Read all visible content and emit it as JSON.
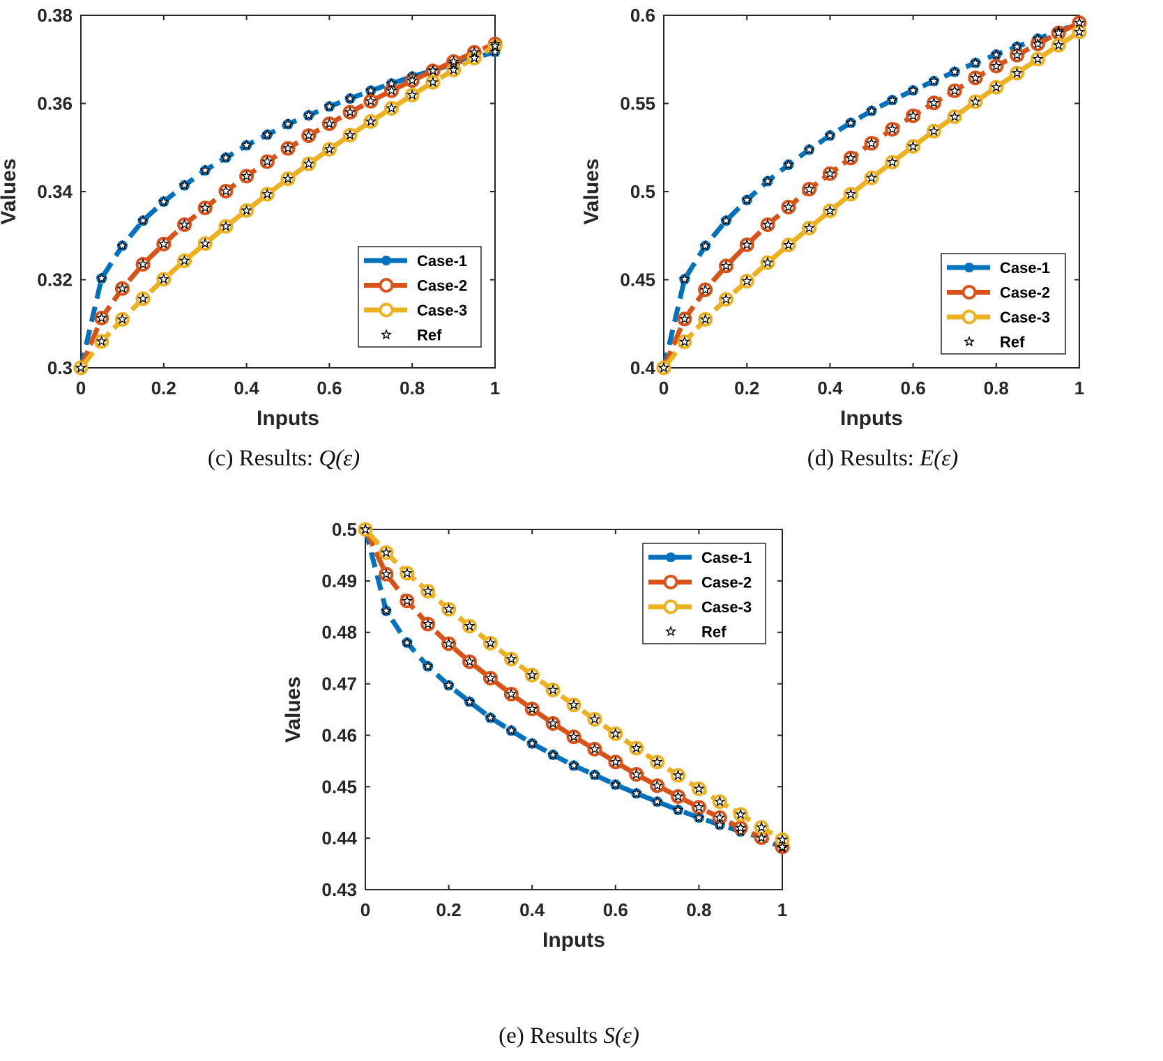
{
  "chart_data": [
    {
      "type": "line",
      "caption": {
        "prefix": "(c) Results: ",
        "math": "Q(ε)"
      },
      "xlabel": "Inputs",
      "ylabel": "Values",
      "xlim": [
        0,
        1
      ],
      "ylim": [
        0.3,
        0.38
      ],
      "xticks": [
        "0",
        "0.2",
        "0.4",
        "0.6",
        "0.8",
        "1"
      ],
      "yticks": [
        "0.3",
        "0.32",
        "0.34",
        "0.36",
        "0.38"
      ],
      "legend_position": "lower-right",
      "x": [
        0,
        0.05,
        0.1,
        0.15,
        0.2,
        0.25,
        0.3,
        0.35,
        0.4,
        0.45,
        0.5,
        0.55,
        0.6,
        0.65,
        0.7,
        0.75,
        0.8,
        0.85,
        0.9,
        0.95,
        1
      ],
      "series": [
        {
          "name": "Case-1",
          "color": "#0072BD",
          "marker": "filled-circle",
          "values": [
            0.3,
            0.3203,
            0.3277,
            0.3334,
            0.3377,
            0.3414,
            0.3448,
            0.3477,
            0.3505,
            0.3529,
            0.3553,
            0.3573,
            0.3593,
            0.3611,
            0.3629,
            0.3645,
            0.3661,
            0.3675,
            0.369,
            0.3703,
            0.3717
          ]
        },
        {
          "name": "Case-2",
          "color": "#D95319",
          "marker": "open-circle",
          "values": [
            0.3,
            0.3113,
            0.318,
            0.3235,
            0.3281,
            0.3325,
            0.3363,
            0.3401,
            0.3435,
            0.3468,
            0.3498,
            0.3527,
            0.3554,
            0.358,
            0.3605,
            0.3629,
            0.3652,
            0.3674,
            0.3695,
            0.3716,
            0.3735
          ]
        },
        {
          "name": "Case-3",
          "color": "#EDB120",
          "marker": "open-circle",
          "values": [
            0.3,
            0.306,
            0.311,
            0.3157,
            0.3201,
            0.3243,
            0.3282,
            0.3321,
            0.3357,
            0.3394,
            0.3429,
            0.3463,
            0.3496,
            0.3528,
            0.3559,
            0.3589,
            0.3619,
            0.3648,
            0.3676,
            0.3703,
            0.373
          ]
        }
      ],
      "ref_name": "Ref"
    },
    {
      "type": "line",
      "caption": {
        "prefix": "(d) Results: ",
        "math": "E(ε)"
      },
      "xlabel": "Inputs",
      "ylabel": "Values",
      "xlim": [
        0,
        1
      ],
      "ylim": [
        0.4,
        0.6
      ],
      "xticks": [
        "0",
        "0.2",
        "0.4",
        "0.6",
        "0.8",
        "1"
      ],
      "yticks": [
        "0.4",
        "0.45",
        "0.5",
        "0.55",
        "0.6"
      ],
      "legend_position": "lower-right",
      "x": [
        0,
        0.05,
        0.1,
        0.15,
        0.2,
        0.25,
        0.3,
        0.35,
        0.4,
        0.45,
        0.5,
        0.55,
        0.6,
        0.65,
        0.7,
        0.75,
        0.8,
        0.85,
        0.9,
        0.95,
        1
      ],
      "series": [
        {
          "name": "Case-1",
          "color": "#0072BD",
          "marker": "filled-circle",
          "values": [
            0.4,
            0.4503,
            0.4692,
            0.4835,
            0.4952,
            0.5059,
            0.5152,
            0.5238,
            0.5318,
            0.539,
            0.5458,
            0.5519,
            0.5574,
            0.5627,
            0.568,
            0.573,
            0.5777,
            0.5822,
            0.5867,
            0.591,
            0.5958
          ]
        },
        {
          "name": "Case-2",
          "color": "#D95319",
          "marker": "open-circle",
          "values": [
            0.4,
            0.4277,
            0.4443,
            0.4578,
            0.4698,
            0.4812,
            0.4912,
            0.5014,
            0.5102,
            0.519,
            0.5274,
            0.5354,
            0.543,
            0.5503,
            0.5572,
            0.5645,
            0.5712,
            0.5774,
            0.5838,
            0.59,
            0.5958
          ]
        },
        {
          "name": "Case-3",
          "color": "#EDB120",
          "marker": "open-circle",
          "values": [
            0.4,
            0.4148,
            0.4275,
            0.4389,
            0.4492,
            0.4597,
            0.4697,
            0.4793,
            0.4891,
            0.4985,
            0.5078,
            0.5167,
            0.5256,
            0.5343,
            0.5425,
            0.551,
            0.5592,
            0.5672,
            0.5752,
            0.583,
            0.5906
          ]
        }
      ],
      "ref_name": "Ref"
    },
    {
      "type": "line",
      "caption": {
        "prefix": "(e) Results ",
        "math": "S(ε)"
      },
      "xlabel": "Inputs",
      "ylabel": "Values",
      "xlim": [
        0,
        1
      ],
      "ylim": [
        0.43,
        0.5
      ],
      "xticks": [
        "0",
        "0.2",
        "0.4",
        "0.6",
        "0.8",
        "1"
      ],
      "yticks": [
        "0.43",
        "0.44",
        "0.45",
        "0.46",
        "0.47",
        "0.48",
        "0.49",
        "0.5"
      ],
      "legend_position": "top-right",
      "x": [
        0,
        0.05,
        0.1,
        0.15,
        0.2,
        0.25,
        0.3,
        0.35,
        0.4,
        0.45,
        0.5,
        0.55,
        0.6,
        0.65,
        0.7,
        0.75,
        0.8,
        0.85,
        0.9,
        0.95,
        1
      ],
      "series": [
        {
          "name": "Case-1",
          "color": "#0072BD",
          "marker": "filled-circle",
          "values": [
            0.5,
            0.4842,
            0.478,
            0.4734,
            0.4697,
            0.4665,
            0.4634,
            0.4609,
            0.4584,
            0.4562,
            0.4541,
            0.4523,
            0.4504,
            0.4487,
            0.4471,
            0.4455,
            0.444,
            0.4426,
            0.4413,
            0.4401,
            0.4381
          ]
        },
        {
          "name": "Case-2",
          "color": "#D95319",
          "marker": "open-circle",
          "values": [
            0.5,
            0.4913,
            0.4861,
            0.4816,
            0.4778,
            0.4743,
            0.4711,
            0.468,
            0.4651,
            0.4623,
            0.4597,
            0.4573,
            0.4548,
            0.4524,
            0.4502,
            0.4481,
            0.446,
            0.444,
            0.442,
            0.4401,
            0.4383
          ]
        },
        {
          "name": "Case-3",
          "color": "#EDB120",
          "marker": "open-circle",
          "values": [
            0.5,
            0.4955,
            0.4915,
            0.488,
            0.4845,
            0.4812,
            0.4779,
            0.4748,
            0.4717,
            0.4688,
            0.4659,
            0.4631,
            0.4603,
            0.4575,
            0.4548,
            0.4522,
            0.4496,
            0.4471,
            0.4446,
            0.4421,
            0.4397
          ]
        }
      ],
      "ref_name": "Ref"
    }
  ]
}
